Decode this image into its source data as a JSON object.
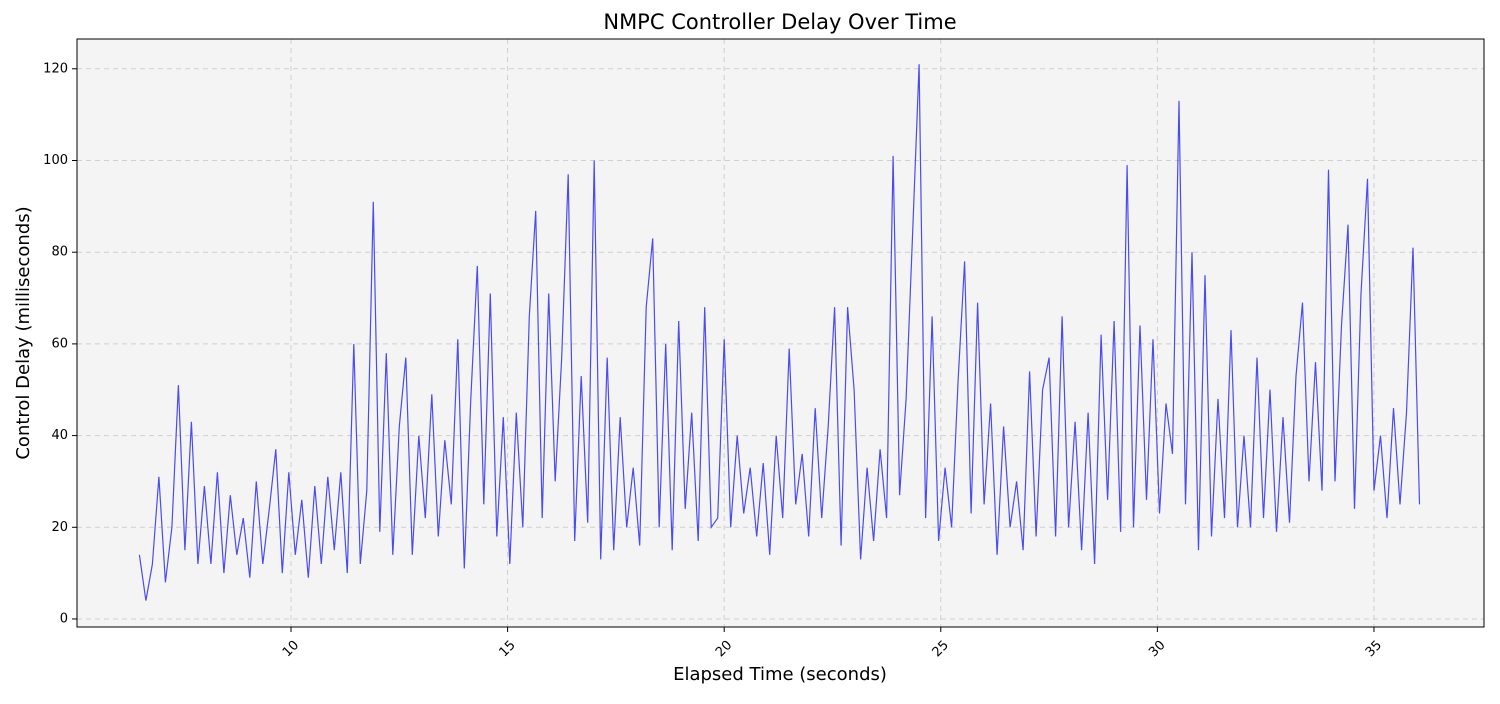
{
  "chart_data": {
    "type": "line",
    "title": "NMPC Controller Delay Over Time",
    "x_label": "Elapsed Time (seconds)",
    "y_label": "Control Delay (milliseconds)",
    "xlim": [
      5.06,
      37.54
    ],
    "ylim": [
      -1.75,
      126.5
    ],
    "xticks": [
      10,
      15,
      20,
      25,
      30,
      35
    ],
    "yticks": [
      0,
      20,
      40,
      60,
      80,
      100,
      120
    ],
    "grid": true,
    "x": [
      6.5,
      6.65,
      6.8,
      6.95,
      7.1,
      7.25,
      7.4,
      7.55,
      7.7,
      7.85,
      8.0,
      8.15,
      8.3,
      8.45,
      8.6,
      8.75,
      8.9,
      9.05,
      9.2,
      9.35,
      9.5,
      9.65,
      9.8,
      9.95,
      10.1,
      10.25,
      10.4,
      10.55,
      10.7,
      10.85,
      11.0,
      11.15,
      11.3,
      11.45,
      11.6,
      11.75,
      11.9,
      12.05,
      12.2,
      12.35,
      12.5,
      12.65,
      12.8,
      12.95,
      13.1,
      13.25,
      13.4,
      13.55,
      13.7,
      13.85,
      14.0,
      14.15,
      14.3,
      14.45,
      14.6,
      14.75,
      14.9,
      15.05,
      15.2,
      15.35,
      15.5,
      15.65,
      15.8,
      15.95,
      16.1,
      16.25,
      16.4,
      16.55,
      16.7,
      16.85,
      17.0,
      17.15,
      17.3,
      17.45,
      17.6,
      17.75,
      17.9,
      18.05,
      18.2,
      18.35,
      18.5,
      18.65,
      18.8,
      18.95,
      19.1,
      19.25,
      19.4,
      19.55,
      19.7,
      19.85,
      20.0,
      20.15,
      20.3,
      20.45,
      20.6,
      20.75,
      20.9,
      21.05,
      21.2,
      21.35,
      21.5,
      21.65,
      21.8,
      21.95,
      22.1,
      22.25,
      22.4,
      22.55,
      22.7,
      22.85,
      23.0,
      23.15,
      23.3,
      23.45,
      23.6,
      23.75,
      23.9,
      24.05,
      24.2,
      24.35,
      24.5,
      24.65,
      24.8,
      24.95,
      25.1,
      25.25,
      25.4,
      25.55,
      25.7,
      25.85,
      26.0,
      26.15,
      26.3,
      26.45,
      26.6,
      26.75,
      26.9,
      27.05,
      27.2,
      27.35,
      27.5,
      27.65,
      27.8,
      27.95,
      28.1,
      28.25,
      28.4,
      28.55,
      28.7,
      28.85,
      29.0,
      29.15,
      29.3,
      29.45,
      29.6,
      29.75,
      29.9,
      30.05,
      30.2,
      30.35,
      30.5,
      30.65,
      30.8,
      30.95,
      31.1,
      31.25,
      31.4,
      31.55,
      31.7,
      31.85,
      32.0,
      32.15,
      32.3,
      32.45,
      32.6,
      32.75,
      32.9,
      33.05,
      33.2,
      33.35,
      33.5,
      33.65,
      33.8,
      33.95,
      34.1,
      34.25,
      34.4,
      34.55,
      34.7,
      34.85,
      35.0,
      35.15,
      35.3,
      35.45,
      35.6,
      35.75,
      35.9,
      36.05
    ],
    "series": [
      {
        "name": "Control Delay",
        "color": "#4b4bf0",
        "values": [
          14,
          4,
          12,
          31,
          8,
          20,
          51,
          15,
          43,
          12,
          29,
          12,
          32,
          10,
          27,
          14,
          22,
          9,
          30,
          12,
          24,
          37,
          10,
          32,
          14,
          26,
          9,
          29,
          12,
          31,
          15,
          32,
          10,
          60,
          12,
          28,
          91,
          19,
          58,
          14,
          42,
          57,
          14,
          40,
          22,
          49,
          18,
          39,
          25,
          61,
          11,
          48,
          77,
          25,
          71,
          18,
          44,
          12,
          45,
          20,
          66,
          89,
          22,
          71,
          30,
          57,
          97,
          17,
          53,
          21,
          100,
          13,
          57,
          15,
          44,
          20,
          33,
          16,
          68,
          83,
          20,
          60,
          15,
          65,
          24,
          45,
          17,
          68,
          20,
          22,
          61,
          20,
          40,
          23,
          33,
          18,
          34,
          14,
          40,
          22,
          59,
          25,
          36,
          18,
          46,
          22,
          42,
          68,
          16,
          68,
          50,
          13,
          33,
          17,
          37,
          22,
          101,
          27,
          48,
          84,
          121,
          22,
          66,
          17,
          33,
          20,
          52,
          78,
          23,
          69,
          25,
          47,
          14,
          42,
          20,
          30,
          15,
          54,
          18,
          50,
          57,
          18,
          66,
          20,
          43,
          15,
          45,
          12,
          62,
          26,
          65,
          19,
          99,
          20,
          64,
          26,
          61,
          23,
          47,
          36,
          113,
          25,
          80,
          15,
          75,
          18,
          48,
          22,
          63,
          20,
          40,
          20,
          57,
          22,
          50,
          19,
          44,
          21,
          53,
          69,
          30,
          56,
          28,
          98,
          30,
          64,
          86,
          24,
          71,
          96,
          28,
          40,
          22,
          46,
          25,
          45,
          81,
          25
        ]
      }
    ]
  }
}
